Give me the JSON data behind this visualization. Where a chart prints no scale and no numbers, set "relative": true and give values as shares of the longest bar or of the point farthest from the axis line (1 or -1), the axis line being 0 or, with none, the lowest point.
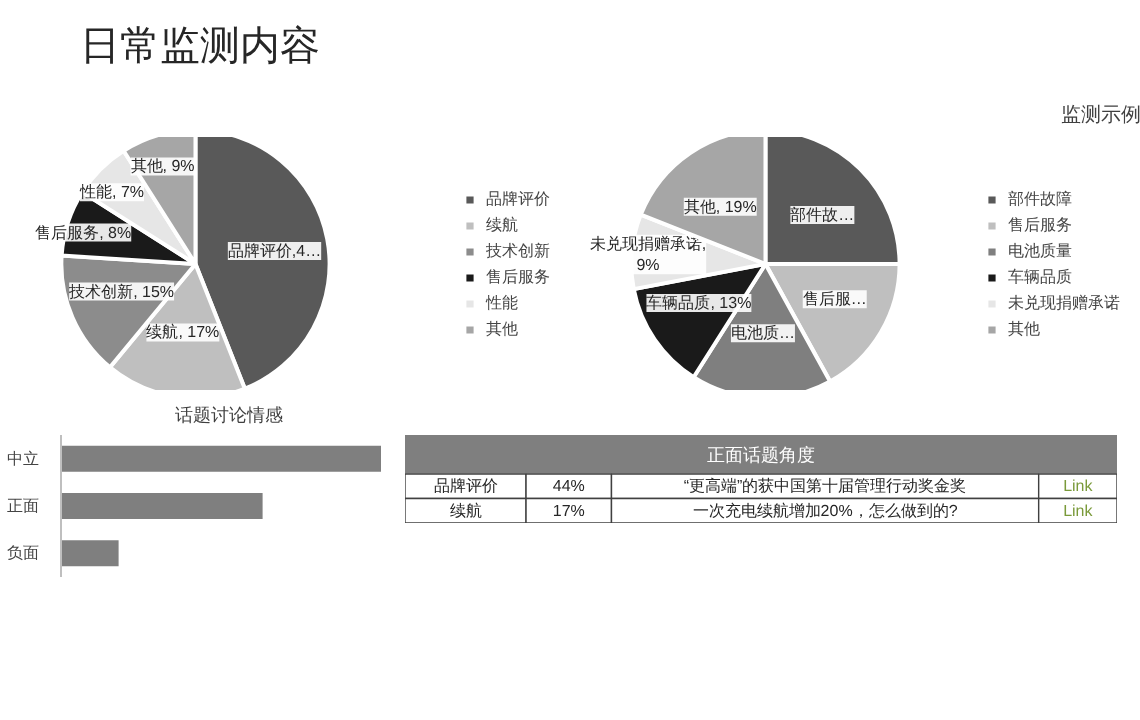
{
  "chart_data": [
    {
      "type": "other",
      "title": "日常监测内容"
    },
    {
      "type": "pie",
      "categories": [
        "品牌评价",
        "续航",
        "技术创新",
        "售后服务",
        "性能",
        "其他"
      ],
      "values": [
        44,
        17,
        15,
        8,
        7,
        9
      ],
      "colors": [
        "#595959",
        "#bfbfbf",
        "#8c8c8c",
        "#1a1a1a",
        "#e6e6e6",
        "#a6a6a6"
      ],
      "value_labels": [
        "品牌评价,4…",
        "续航, 17%",
        "技术创新, 15%",
        "售后服务, 8%",
        "性能, 7%",
        "其他, 9%"
      ],
      "legend": "right"
    },
    {
      "type": "pie",
      "title": "监测示例",
      "categories": [
        "部件故障",
        "售后服务",
        "电池质量",
        "车辆品质",
        "未兑现捐赠承诺",
        "其他"
      ],
      "values": [
        25,
        17,
        17,
        13,
        9,
        19
      ],
      "colors": [
        "#595959",
        "#bfbfbf",
        "#7f7f7f",
        "#1a1a1a",
        "#e6e6e6",
        "#a6a6a6"
      ],
      "value_labels": [
        "部件故…",
        "售后服…",
        "电池质…",
        "车辆品质, 13%",
        "未兑现捐赠承诺, 9%",
        "其他, 19%"
      ],
      "legend": "right"
    },
    {
      "type": "bar",
      "title": "话题讨论情感",
      "orientation": "horizontal",
      "relative": true,
      "categories": [
        "中立",
        "正面",
        "负面"
      ],
      "values": [
        1,
        0.63,
        0.18
      ],
      "color": "#7f7f7f"
    },
    {
      "type": "other",
      "title": "正面话题角度",
      "annotations": [
        "品牌评价",
        "44%",
        "“更高端”的获中国第十届管理行动奖金奖",
        "Link",
        "续航",
        "17%",
        "一次充电续航增加20%，怎么做到的?",
        "Link"
      ]
    }
  ]
}
